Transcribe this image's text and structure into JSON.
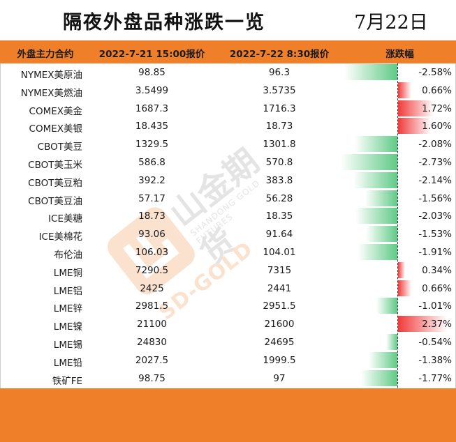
{
  "header": {
    "title": "隔夜外盘品种涨跌一览",
    "date": "7月22日"
  },
  "table": {
    "columns": [
      "外盘主力合约",
      "2022-7-21 15:00报价",
      "2022-7-22 8:30报价",
      "涨跌幅"
    ],
    "rows": [
      {
        "name": "NYMEX美原油",
        "prev": "98.85",
        "curr": "96.3",
        "chg": "-2.58%",
        "pct": -2.58
      },
      {
        "name": "NYMEX美燃油",
        "prev": "3.5499",
        "curr": "3.5735",
        "chg": "0.66%",
        "pct": 0.66
      },
      {
        "name": "COMEX美金",
        "prev": "1687.3",
        "curr": "1716.3",
        "chg": "1.72%",
        "pct": 1.72
      },
      {
        "name": "COMEX美银",
        "prev": "18.435",
        "curr": "18.73",
        "chg": "1.60%",
        "pct": 1.6
      },
      {
        "name": "CBOT美豆",
        "prev": "1329.5",
        "curr": "1301.8",
        "chg": "-2.08%",
        "pct": -2.08
      },
      {
        "name": "CBOT美玉米",
        "prev": "586.8",
        "curr": "570.8",
        "chg": "-2.73%",
        "pct": -2.73
      },
      {
        "name": "CBOT美豆粕",
        "prev": "392.2",
        "curr": "383.8",
        "chg": "-2.14%",
        "pct": -2.14
      },
      {
        "name": "CBOT美豆油",
        "prev": "57.17",
        "curr": "56.28",
        "chg": "-1.56%",
        "pct": -1.56
      },
      {
        "name": "ICE美糖",
        "prev": "18.73",
        "curr": "18.35",
        "chg": "-2.03%",
        "pct": -2.03
      },
      {
        "name": "ICE美棉花",
        "prev": "93.06",
        "curr": "91.64",
        "chg": "-1.53%",
        "pct": -1.53
      },
      {
        "name": "布伦油",
        "prev": "106.03",
        "curr": "104.01",
        "chg": "-1.91%",
        "pct": -1.91
      },
      {
        "name": "LME铜",
        "prev": "7290.5",
        "curr": "7315",
        "chg": "0.34%",
        "pct": 0.34
      },
      {
        "name": "LME铝",
        "prev": "2425",
        "curr": "2441",
        "chg": "0.66%",
        "pct": 0.66
      },
      {
        "name": "LME锌",
        "prev": "2981.5",
        "curr": "2951.5",
        "chg": "-1.01%",
        "pct": -1.01
      },
      {
        "name": "LME镍",
        "prev": "21100",
        "curr": "21600",
        "chg": "2.37%",
        "pct": 2.37
      },
      {
        "name": "LME锡",
        "prev": "24830",
        "curr": "24695",
        "chg": "-0.54%",
        "pct": -0.54
      },
      {
        "name": "LME铅",
        "prev": "2027.5",
        "curr": "1999.5",
        "chg": "-1.38%",
        "pct": -1.38
      },
      {
        "name": "铁矿FE",
        "prev": "98.75",
        "curr": "97",
        "chg": "-1.77%",
        "pct": -1.77
      }
    ]
  },
  "watermark": {
    "brand": "山金期货",
    "sub": "SHANDONG GOLD FUTURES",
    "gold": "SD-GOLD"
  },
  "colors": {
    "accent": "#f07f2a",
    "up": "#f03a3a",
    "down": "#5fca86"
  }
}
